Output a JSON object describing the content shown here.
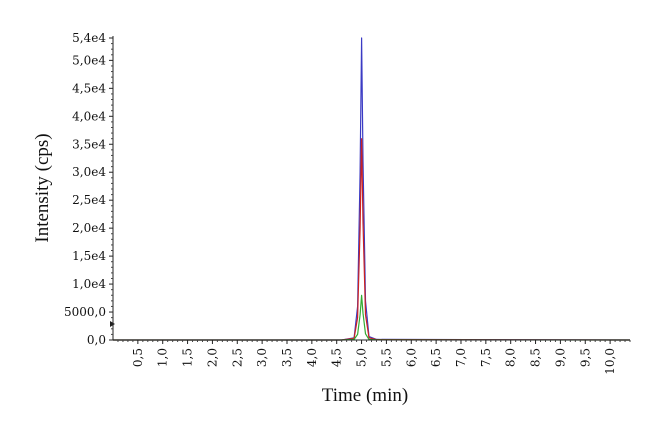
{
  "chart_data": {
    "type": "line",
    "title": "",
    "xlabel": "Time (min)",
    "ylabel": "Intensity (cps)",
    "xlim": [
      0.0,
      10.4
    ],
    "ylim": [
      0,
      54000
    ],
    "x_ticks": [
      0.5,
      1.0,
      1.5,
      2.0,
      2.5,
      3.0,
      3.5,
      4.0,
      4.5,
      5.0,
      5.5,
      6.0,
      6.5,
      7.0,
      7.5,
      8.0,
      8.5,
      9.0,
      9.5,
      10.0
    ],
    "x_tick_labels": [
      "0,5",
      "1,0",
      "1,5",
      "2,0",
      "2,5",
      "3,0",
      "3,5",
      "4,0",
      "4,5",
      "5,0",
      "5,5",
      "6,0",
      "6,5",
      "7,0",
      "7,5",
      "8,0",
      "8,5",
      "9,0",
      "9,5",
      "10,0"
    ],
    "y_ticks": [
      0,
      5000,
      10000,
      15000,
      20000,
      25000,
      30000,
      35000,
      40000,
      45000,
      50000,
      54000
    ],
    "y_tick_labels": [
      "0,0",
      "5000,0",
      "1,0e4",
      "1,5e4",
      "2,0e4",
      "2,5e4",
      "3,0e4",
      "3,5e4",
      "4,0e4",
      "4,5e4",
      "5,0e4",
      "5,4e4"
    ],
    "grid": false,
    "series": [
      {
        "color": "#3b3bc4",
        "x": [
          0.0,
          4.6,
          4.85,
          4.92,
          4.97,
          5.0,
          5.03,
          5.08,
          5.15,
          5.3,
          10.4
        ],
        "y": [
          0,
          0,
          400,
          6000,
          30000,
          54000,
          32000,
          7000,
          600,
          100,
          0
        ]
      },
      {
        "color": "#cc2222",
        "x": [
          0.0,
          4.6,
          4.85,
          4.92,
          4.97,
          5.0,
          5.03,
          5.08,
          5.15,
          5.3,
          10.4
        ],
        "y": [
          0,
          0,
          300,
          4000,
          20000,
          36000,
          21000,
          4500,
          400,
          80,
          0
        ]
      },
      {
        "color": "#33aa33",
        "x": [
          0.0,
          4.6,
          4.85,
          4.92,
          4.97,
          5.0,
          5.03,
          5.08,
          5.15,
          5.3,
          10.4
        ],
        "y": [
          0,
          0,
          100,
          1000,
          4500,
          8000,
          4800,
          1100,
          100,
          20,
          0
        ]
      }
    ]
  }
}
